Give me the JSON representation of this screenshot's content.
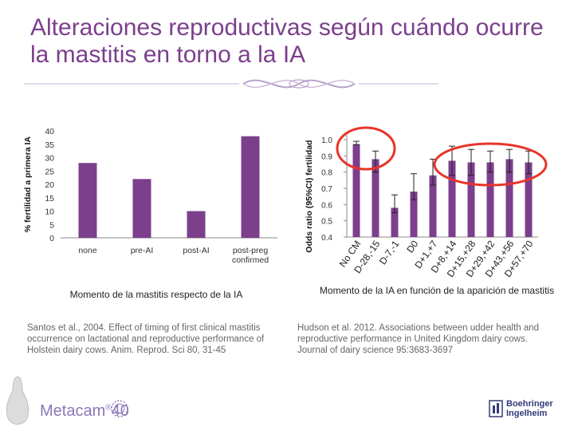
{
  "slide": {
    "title": "Alteraciones reproductivas según cuándo ocurre la mastitis en torno a la IA"
  },
  "chart_data": [
    {
      "type": "bar",
      "categories": [
        "none",
        "pre-AI",
        "post-AI",
        "post-preg confirmed"
      ],
      "values": [
        28,
        22,
        10,
        38
      ],
      "ylabel": "% fertilidad a primera IA",
      "xlabel": "Momento de la mastitis respecto de la IA",
      "ylim": [
        0,
        40
      ],
      "yticks": [
        0,
        5,
        10,
        15,
        20,
        25,
        30,
        35,
        40
      ],
      "grid": false,
      "bar_color": "#7b3f8c"
    },
    {
      "type": "bar",
      "categories": [
        "No CM",
        "D-28,-15",
        "D-7,-1",
        "D0",
        "D+1,+7",
        "D+8,+14",
        "D+15,+28",
        "D+29,+42",
        "D+43,+56",
        "D+57,+70"
      ],
      "values": [
        0.97,
        0.88,
        0.58,
        0.68,
        0.78,
        0.87,
        0.86,
        0.86,
        0.88,
        0.86
      ],
      "error_lower": [
        0.97,
        0.8,
        0.55,
        0.63,
        0.72,
        0.78,
        0.78,
        0.8,
        0.8,
        0.79
      ],
      "error_upper": [
        0.99,
        0.93,
        0.66,
        0.79,
        0.88,
        0.96,
        0.94,
        0.93,
        0.94,
        0.93
      ],
      "ylabel": "Odds ratio (95%CI) fertilidad",
      "xlabel": "Momento de la IA en función de la aparición de mastitis",
      "ylim": [
        0.4,
        1.0
      ],
      "yticks": [
        0.4,
        0.5,
        0.6,
        0.7,
        0.8,
        0.9,
        1.0
      ],
      "grid": false,
      "bar_color": "#7b3f8c",
      "highlight_color": "#e8342a"
    }
  ],
  "citations": {
    "left": "Santos et al., 2004. Effect of timing of first clinical mastitis occurrence on lactational and reproductive performance of Holstein dairy cows. Anim. Reprod. Sci 80, 31-45",
    "right": "Hudson et al. 2012. Associations between udder health and reproductive performance in United Kingdom dairy cows. Journal of dairy science 95:3683-3697"
  },
  "footer": {
    "brand": "Metacam",
    "brand_suffix": "40",
    "company": "Boehringer Ingelheim"
  }
}
